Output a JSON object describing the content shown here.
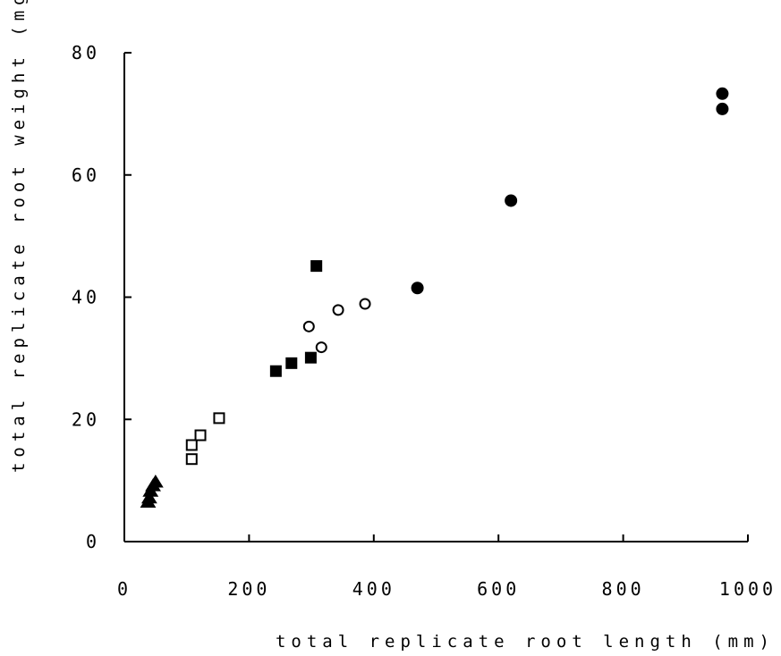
{
  "chart_data": {
    "type": "scatter",
    "title": "",
    "xlabel": "total replicate root length (mm)",
    "ylabel": "total replicate root weight (mg)",
    "xlim": [
      0,
      1000
    ],
    "ylim": [
      0,
      80
    ],
    "x_ticks": [
      {
        "value": 0,
        "label": "0"
      },
      {
        "value": 200,
        "label": "200"
      },
      {
        "value": 400,
        "label": "400"
      },
      {
        "value": 600,
        "label": "600"
      },
      {
        "value": 800,
        "label": "800"
      },
      {
        "value": 1000,
        "label": "1000"
      }
    ],
    "y_ticks": [
      {
        "value": 0,
        "label": "0"
      },
      {
        "value": 20,
        "label": "20"
      },
      {
        "value": 40,
        "label": "40"
      },
      {
        "value": 60,
        "label": "60"
      },
      {
        "value": 80,
        "label": "80"
      }
    ],
    "grid": false,
    "legend": "none",
    "series": [
      {
        "marker": "filled-triangle",
        "color": "#000000",
        "points": [
          {
            "x": 38,
            "y": 6.5
          },
          {
            "x": 40,
            "y": 7.2
          },
          {
            "x": 42,
            "y": 8.3
          },
          {
            "x": 46,
            "y": 9.2
          },
          {
            "x": 50,
            "y": 9.8
          }
        ]
      },
      {
        "marker": "open-square",
        "color": "#000000",
        "points": [
          {
            "x": 108,
            "y": 13.5
          },
          {
            "x": 108,
            "y": 15.8
          },
          {
            "x": 122,
            "y": 17.4
          },
          {
            "x": 152,
            "y": 20.2
          }
        ]
      },
      {
        "marker": "filled-square",
        "color": "#000000",
        "points": [
          {
            "x": 243,
            "y": 27.9
          },
          {
            "x": 268,
            "y": 29.2
          },
          {
            "x": 299,
            "y": 30.1
          },
          {
            "x": 308,
            "y": 45.1
          }
        ]
      },
      {
        "marker": "open-circle",
        "color": "#000000",
        "points": [
          {
            "x": 296,
            "y": 35.2
          },
          {
            "x": 316,
            "y": 31.8
          },
          {
            "x": 343,
            "y": 37.9
          },
          {
            "x": 386,
            "y": 38.9
          }
        ]
      },
      {
        "marker": "filled-circle",
        "color": "#000000",
        "points": [
          {
            "x": 470,
            "y": 41.5
          },
          {
            "x": 620,
            "y": 55.8
          },
          {
            "x": 959,
            "y": 70.8
          },
          {
            "x": 959,
            "y": 73.3
          }
        ]
      }
    ]
  }
}
